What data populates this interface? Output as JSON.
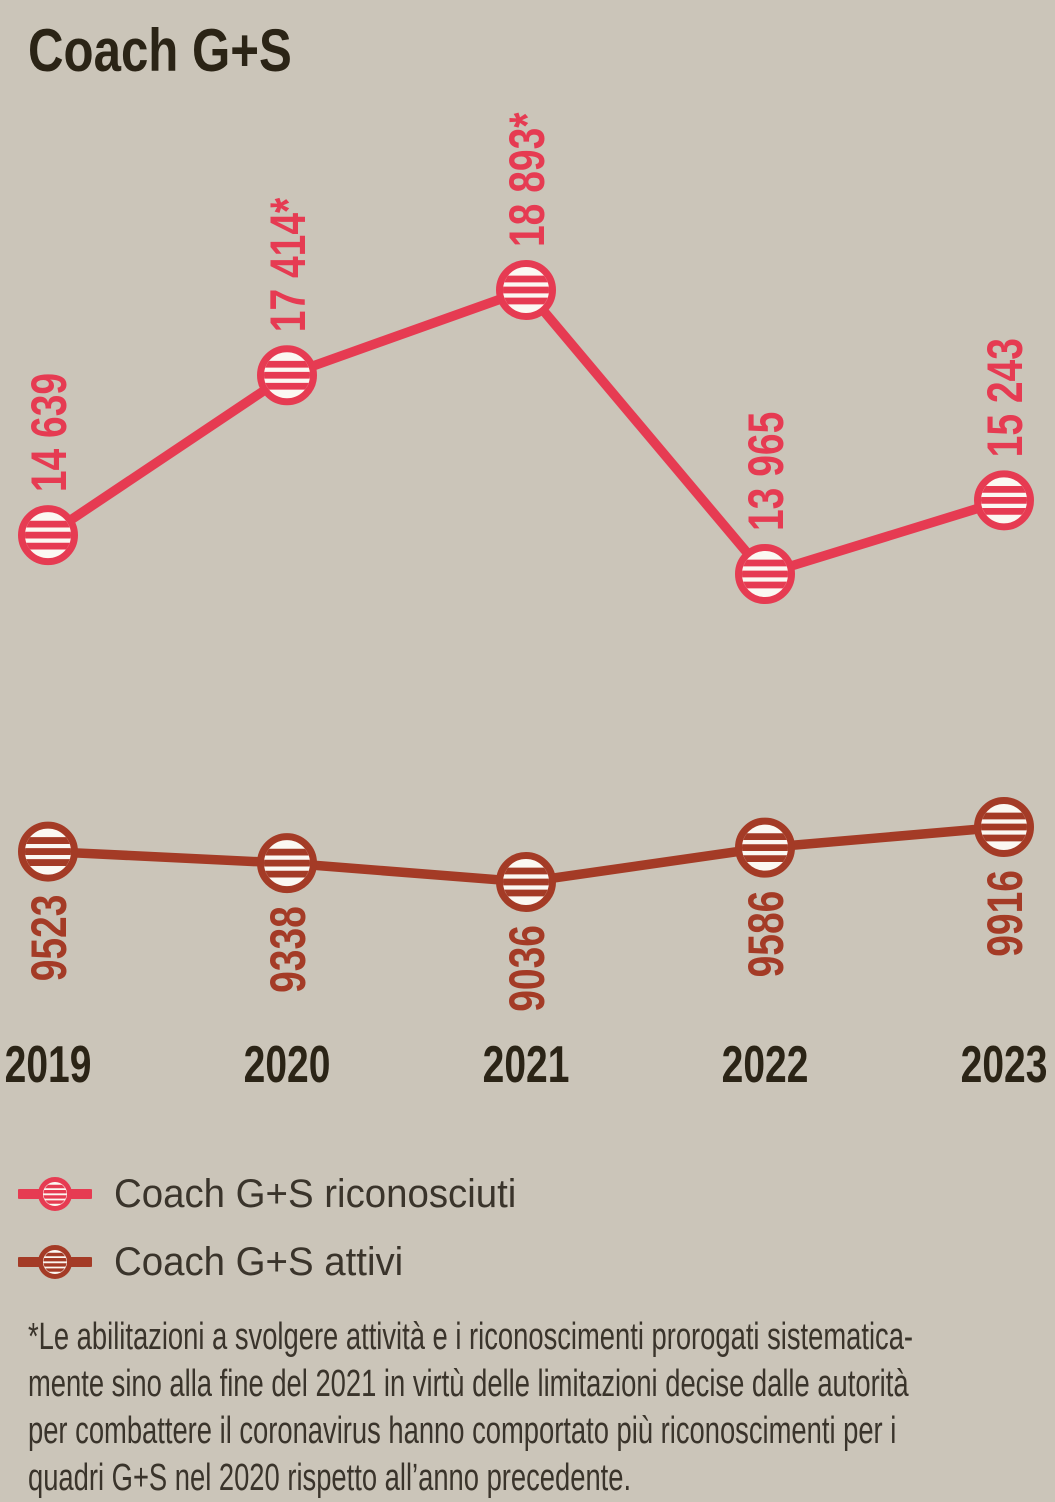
{
  "title": "Coach G+S",
  "chart_data": {
    "type": "line",
    "categories": [
      "2019",
      "2020",
      "2021",
      "2022",
      "2023"
    ],
    "series": [
      {
        "name": "Coach G+S riconosciuti",
        "color": "#e63b52",
        "label_position": "above",
        "values": [
          14639,
          17414,
          18893,
          13965,
          15243
        ],
        "labels": [
          "14 639",
          "17 414*",
          "18 893*",
          "13 965",
          "15 243"
        ]
      },
      {
        "name": "Coach G+S attivi",
        "color": "#a43b26",
        "label_position": "below",
        "values": [
          9523,
          9338,
          9036,
          9586,
          9916
        ],
        "labels": [
          "9523",
          "9338",
          "9036",
          "9586",
          "9916"
        ]
      }
    ],
    "grid": false,
    "marker_style": "striped-circle",
    "legend_position": "bottom-left",
    "x_axis_labels_color": "#2b2416"
  },
  "legend": {
    "items": [
      {
        "label": "Coach G+S riconosciuti",
        "color": "#e63b52"
      },
      {
        "label": "Coach G+S attivi",
        "color": "#a43b26"
      }
    ]
  },
  "footnote": {
    "lines": [
      "*Le abilitazioni a svolgere attività e i riconoscimenti prorogati sistematica-",
      "mente sino alla fine del 2021 in virtù delle limitazioni decise dalle autorità",
      "per combattere il coronavirus hanno comportato più riconoscimenti per i",
      "quadri G+S nel 2020 rispetto all’anno precedente."
    ]
  },
  "colors": {
    "background": "#cbc5b9",
    "accent_red": "#e63b52",
    "accent_dark_red": "#a43b26",
    "heading_text": "#2b2416",
    "body_text": "#3a342b",
    "marker_fill": "#fbf8f2"
  }
}
